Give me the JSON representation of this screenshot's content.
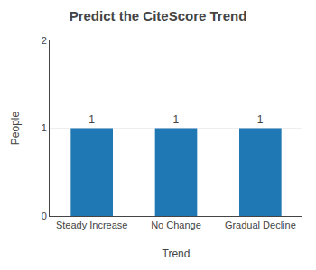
{
  "chart_data": {
    "type": "bar",
    "title": "Predict the CiteScore Trend",
    "categories": [
      "Steady Increase",
      "No Change",
      "Gradual Decline"
    ],
    "values": [
      1,
      1,
      1
    ],
    "xlabel": "Trend",
    "ylabel": "People",
    "ylim": [
      0,
      2
    ],
    "yticks": [
      0,
      1,
      2
    ],
    "grid": true,
    "data_labels": true
  }
}
